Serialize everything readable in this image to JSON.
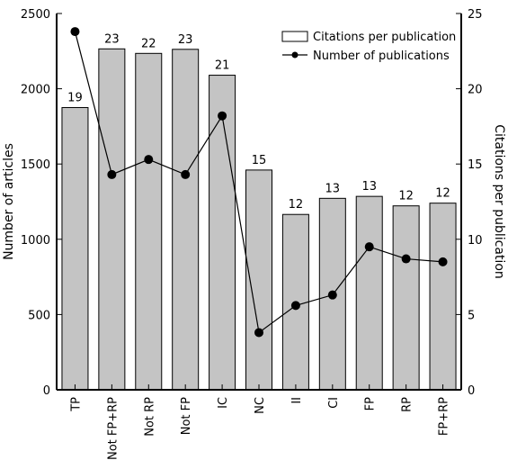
{
  "chart_data": {
    "type": "bar",
    "categories": [
      "TP",
      "Not FP+RP",
      "Not RP",
      "Not FP",
      "IC",
      "NC",
      "II",
      "CI",
      "FP",
      "RP",
      "FP+RP"
    ],
    "series": [
      {
        "name": "Citations per publication",
        "type": "bar",
        "axis": "left",
        "values": [
          1875,
          2265,
          2235,
          2262,
          2090,
          1460,
          1165,
          1272,
          1285,
          1222,
          1240
        ],
        "labels": [
          "19",
          "23",
          "22",
          "23",
          "21",
          "15",
          "12",
          "13",
          "13",
          "12",
          "12"
        ]
      },
      {
        "name": "Number of publications",
        "type": "line",
        "axis": "right",
        "values": [
          23.8,
          14.3,
          15.3,
          14.3,
          18.2,
          3.8,
          5.6,
          6.3,
          9.5,
          8.7,
          8.5
        ]
      }
    ],
    "ylabel": "Number of articles",
    "y2label": "Citations per publication",
    "ylim": [
      0,
      2500
    ],
    "y2lim": [
      0,
      25
    ],
    "yticks": [
      "0",
      "500",
      "1000",
      "1500",
      "2000",
      "2500"
    ],
    "y2ticks": [
      "0",
      "5",
      "10",
      "15",
      "20",
      "25"
    ],
    "legend": "top-right",
    "colors": {
      "bar_fill": "#c4c4c4",
      "bar_stroke": "#000000",
      "line": "#000000",
      "marker": "#000000"
    }
  }
}
